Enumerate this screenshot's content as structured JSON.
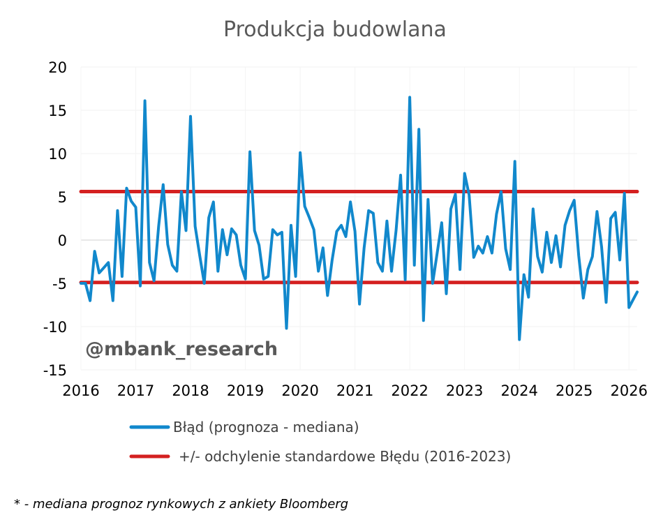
{
  "chart_data": {
    "type": "line",
    "title": "Produkcja budowlana",
    "xlabel": "",
    "ylabel": "",
    "ylim": [
      -15,
      20
    ],
    "xlim": [
      2016,
      2026.15
    ],
    "y_ticks": [
      "20",
      "15",
      "10",
      "5",
      "0",
      "-5",
      "-10",
      "-15"
    ],
    "y_tick_values": [
      20,
      15,
      10,
      5,
      0,
      -5,
      -10,
      -15
    ],
    "x_ticks": [
      "2016",
      "2017",
      "2018",
      "2019",
      "2020",
      "2021",
      "2022",
      "2023",
      "2024",
      "2025",
      "2026"
    ],
    "x_tick_values": [
      2016,
      2017,
      2018,
      2019,
      2020,
      2021,
      2022,
      2023,
      2024,
      2025,
      2026
    ],
    "grid": true,
    "legend_position": "bottom",
    "series": [
      {
        "name": "Błąd (prognoza - mediana)",
        "color": "#1188cc",
        "x": [
          2016.0,
          2016.083,
          2016.167,
          2016.25,
          2016.333,
          2016.417,
          2016.5,
          2016.583,
          2016.667,
          2016.75,
          2016.833,
          2016.917,
          2017.0,
          2017.083,
          2017.167,
          2017.25,
          2017.333,
          2017.417,
          2017.5,
          2017.583,
          2017.667,
          2017.75,
          2017.833,
          2017.917,
          2018.0,
          2018.083,
          2018.167,
          2018.25,
          2018.333,
          2018.417,
          2018.5,
          2018.583,
          2018.667,
          2018.75,
          2018.833,
          2018.917,
          2019.0,
          2019.083,
          2019.167,
          2019.25,
          2019.333,
          2019.417,
          2019.5,
          2019.583,
          2019.667,
          2019.75,
          2019.833,
          2019.917,
          2020.0,
          2020.083,
          2020.167,
          2020.25,
          2020.333,
          2020.417,
          2020.5,
          2020.583,
          2020.667,
          2020.75,
          2020.833,
          2020.917,
          2021.0,
          2021.083,
          2021.167,
          2021.25,
          2021.333,
          2021.417,
          2021.5,
          2021.583,
          2021.667,
          2021.75,
          2021.833,
          2021.917,
          2022.0,
          2022.083,
          2022.167,
          2022.25,
          2022.333,
          2022.417,
          2022.5,
          2022.583,
          2022.667,
          2022.75,
          2022.833,
          2022.917,
          2023.0,
          2023.083,
          2023.167,
          2023.25,
          2023.333,
          2023.417,
          2023.5,
          2023.583,
          2023.667,
          2023.75,
          2023.833,
          2023.917,
          2024.0,
          2024.083,
          2024.167,
          2024.25,
          2024.333,
          2024.417,
          2024.5,
          2024.583,
          2024.667,
          2024.75,
          2024.833,
          2024.917,
          2025.0,
          2025.083,
          2025.167,
          2025.25,
          2025.333,
          2025.417,
          2025.5,
          2025.583,
          2025.667,
          2025.75,
          2025.833,
          2025.917,
          2026.0,
          2026.083,
          2026.15
        ],
        "values": [
          -5.0,
          -5.0,
          -7.0,
          -1.3,
          -3.8,
          -3.2,
          -2.6,
          -7.0,
          3.4,
          -4.2,
          6.0,
          4.5,
          3.8,
          -5.3,
          16.1,
          -2.6,
          -4.7,
          1.6,
          6.4,
          -0.5,
          -2.9,
          -3.6,
          5.6,
          1.1,
          14.3,
          1.6,
          -1.8,
          -5.0,
          2.6,
          4.4,
          -3.6,
          1.2,
          -1.7,
          1.3,
          0.6,
          -2.9,
          -4.5,
          10.2,
          1.1,
          -0.6,
          -4.5,
          -4.2,
          1.2,
          0.6,
          0.9,
          -10.2,
          1.7,
          -4.2,
          10.1,
          3.9,
          2.6,
          1.2,
          -3.6,
          -0.9,
          -6.4,
          -2.3,
          1.0,
          1.7,
          0.4,
          4.4,
          1.0,
          -7.4,
          -0.9,
          3.4,
          3.1,
          -2.6,
          -3.6,
          2.2,
          -3.6,
          1.1,
          7.5,
          -4.6,
          16.5,
          -2.9,
          12.8,
          -9.3,
          4.7,
          -5.0,
          -1.5,
          2.0,
          -6.2,
          3.6,
          5.3,
          -3.4,
          7.7,
          5.2,
          -2.0,
          -0.7,
          -1.5,
          0.4,
          -1.5,
          3.0,
          5.6,
          -1.0,
          -3.4,
          9.1,
          -11.5,
          -4.0,
          -6.6,
          3.6,
          -1.9,
          -3.7,
          0.9,
          -2.6,
          0.5,
          -3.1,
          1.7,
          3.4,
          4.6,
          -1.8,
          -6.7,
          -3.4,
          -1.9,
          3.3,
          -0.8,
          -7.2,
          2.5,
          3.2,
          -2.3,
          5.4,
          -7.8,
          -6.8,
          -6.0
        ]
      },
      {
        "name": "+/- odchylenie standardowe Błędu (2016-2023)",
        "color": "#d42020",
        "upper": 5.6,
        "lower": -4.9
      }
    ]
  },
  "watermark": "@mbank_research",
  "footnote": "* - mediana prognoz rynkowych z ankiety Bloomberg"
}
